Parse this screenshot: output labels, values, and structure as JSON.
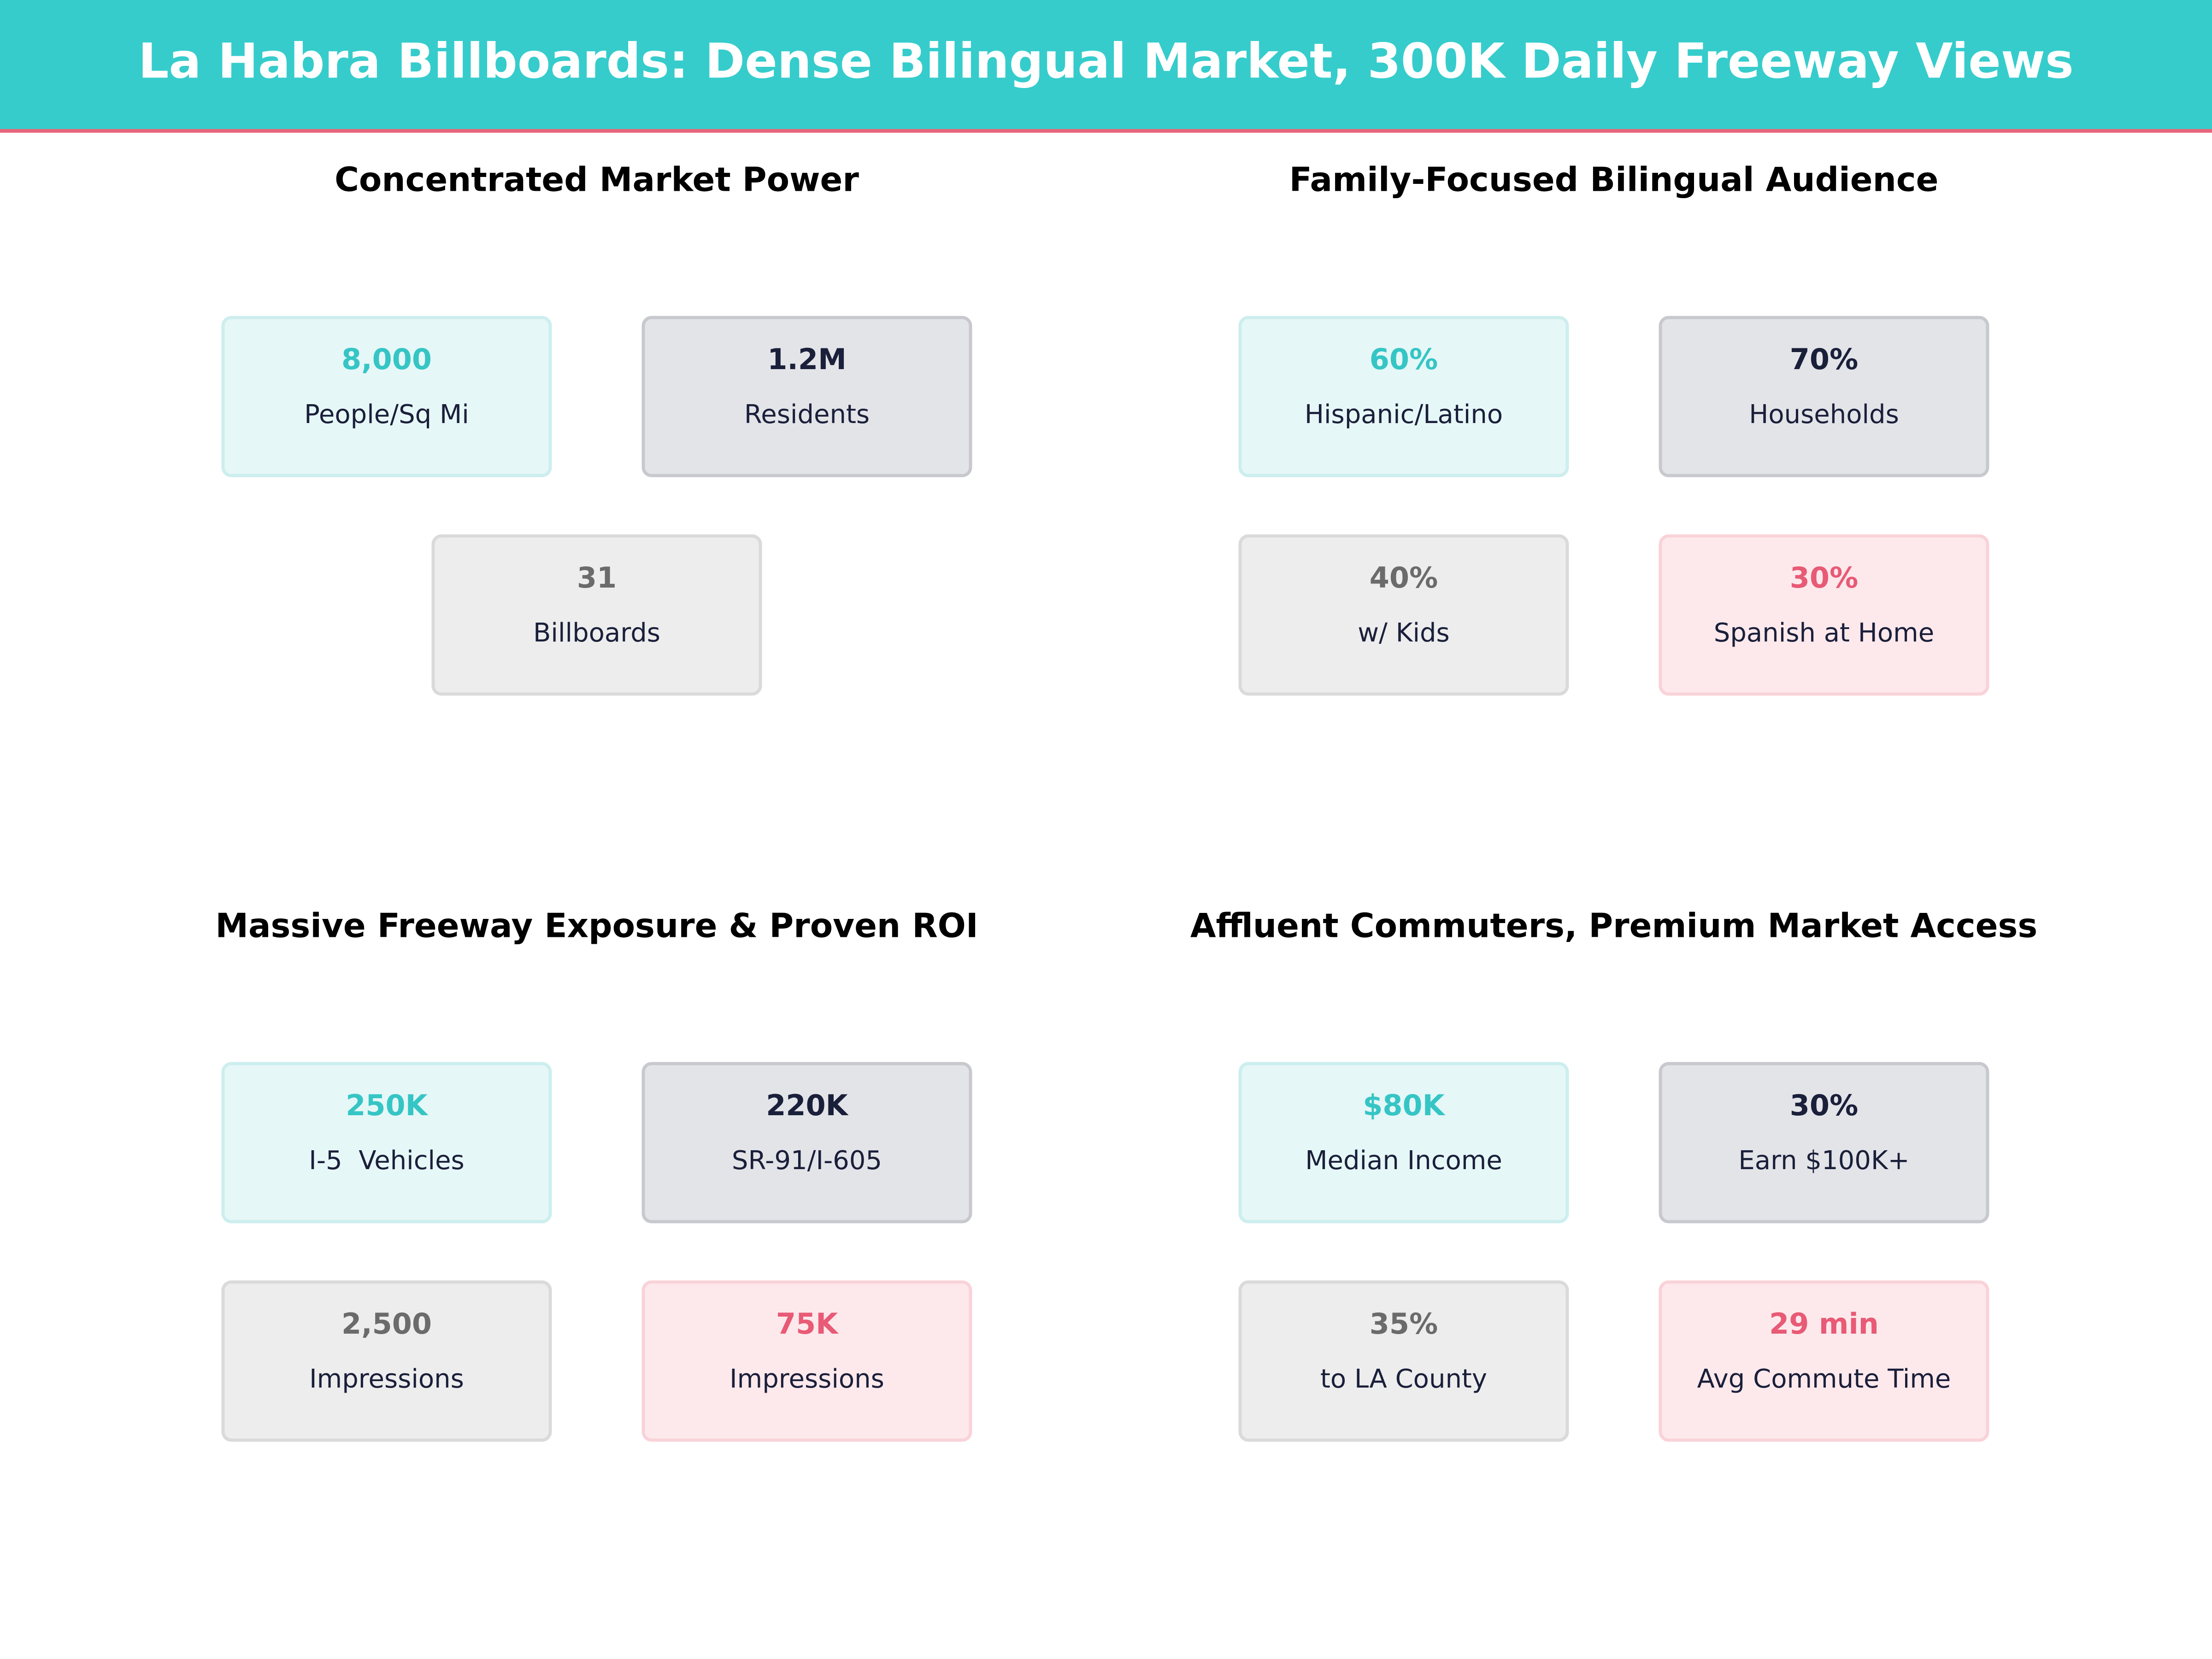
{
  "header": {
    "title": "La Habra Billboards: Dense Bilingual Market, 300K Daily Freeway Views"
  },
  "panels": [
    {
      "title": "Concentrated Market Power",
      "cards": [
        {
          "value": "8,000",
          "label": "People/Sq Mi"
        },
        {
          "value": "1.2M",
          "label": "Residents"
        },
        {
          "value": "31",
          "label": "Billboards"
        }
      ]
    },
    {
      "title": "Family-Focused Bilingual Audience",
      "cards": [
        {
          "value": "60%",
          "label": "Hispanic/Latino"
        },
        {
          "value": "70%",
          "label": "Households"
        },
        {
          "value": "40%",
          "label": "w/ Kids"
        },
        {
          "value": "30%",
          "label": "Spanish at Home"
        }
      ]
    },
    {
      "title": "Massive Freeway Exposure & Proven ROI",
      "cards": [
        {
          "value": "250K",
          "label": "I-5  Vehicles"
        },
        {
          "value": "220K",
          "label": "SR-91/I-605"
        },
        {
          "value": "2,500",
          "label": "Impressions"
        },
        {
          "value": "75K",
          "label": "Impressions"
        }
      ]
    },
    {
      "title": "Affluent Commuters, Premium Market Access",
      "cards": [
        {
          "value": "$80K",
          "label": "Median Income"
        },
        {
          "value": "30%",
          "label": "Earn $100K+"
        },
        {
          "value": "35%",
          "label": "to LA County"
        },
        {
          "value": "29 min",
          "label": "Avg Commute Time"
        }
      ]
    }
  ]
}
